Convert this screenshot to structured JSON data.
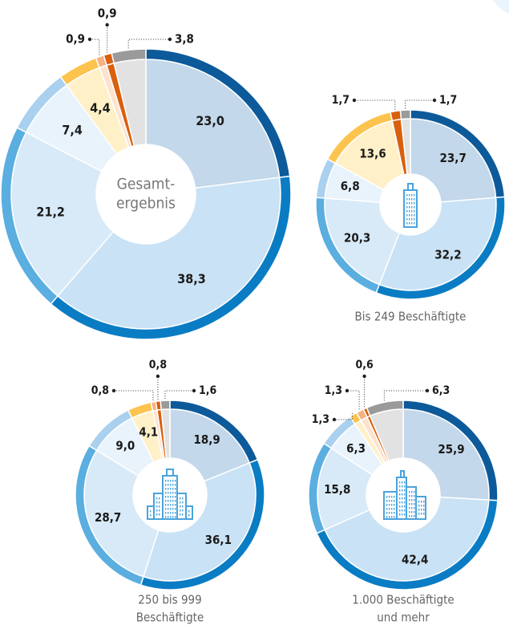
{
  "chart_data": [
    {
      "type": "pie",
      "title": [
        "Gesamt-",
        "ergebnis"
      ],
      "values": [
        23.0,
        38.3,
        21.2,
        7.4,
        4.4,
        0.9,
        0.9,
        3.8
      ],
      "value_labels": [
        "23,0",
        "38,3",
        "21,2",
        "7,4",
        "4,4",
        "0,9",
        "0,9",
        "3,8"
      ],
      "colors": [
        "#0d5a9a",
        "#0a7cc4",
        "#5aaee0",
        "#a9d0ee",
        "#fcc44e",
        "#f5b183",
        "#d9600e",
        "#9a9a9a"
      ],
      "inner_colors": [
        "#c3d8ea",
        "#c9e2f5",
        "#d8eaf8",
        "#e8f3fc",
        "#fff0c8",
        "#fde3cf",
        "#d9600e",
        "#e2e2e2"
      ]
    },
    {
      "type": "pie",
      "title": [
        "Bis 249 Beschäftigte"
      ],
      "values": [
        23.7,
        32.2,
        20.3,
        6.8,
        13.6,
        1.7,
        1.7
      ],
      "value_labels": [
        "23,7",
        "32,2",
        "20,3",
        "6,8",
        "13,6",
        "1,7",
        "1,7"
      ],
      "colors": [
        "#0d5a9a",
        "#0a7cc4",
        "#5aaee0",
        "#a9d0ee",
        "#fcc44e",
        "#d9600e",
        "#9a9a9a"
      ],
      "inner_colors": [
        "#c3d8ea",
        "#c9e2f5",
        "#d8eaf8",
        "#e8f3fc",
        "#fff0c8",
        "#d9600e",
        "#e2e2e2"
      ]
    },
    {
      "type": "pie",
      "title": [
        "250 bis 999",
        "Beschäftigte"
      ],
      "values": [
        18.9,
        36.1,
        28.7,
        9.0,
        4.1,
        0.8,
        0.8,
        1.6
      ],
      "value_labels": [
        "18,9",
        "36,1",
        "28,7",
        "9,0",
        "4,1",
        "0,8",
        "0,8",
        "1,6"
      ],
      "colors": [
        "#0d5a9a",
        "#0a7cc4",
        "#5aaee0",
        "#a9d0ee",
        "#fcc44e",
        "#f5b183",
        "#d9600e",
        "#9a9a9a"
      ],
      "inner_colors": [
        "#c3d8ea",
        "#c9e2f5",
        "#d8eaf8",
        "#e8f3fc",
        "#fff0c8",
        "#fde3cf",
        "#d9600e",
        "#e2e2e2"
      ]
    },
    {
      "type": "pie",
      "title": [
        "1.000 Beschäftigte",
        "und mehr"
      ],
      "values": [
        25.9,
        42.4,
        15.8,
        6.3,
        1.3,
        1.3,
        0.6,
        6.3
      ],
      "value_labels": [
        "25,9",
        "42,4",
        "15,8",
        "6,3",
        "1,3",
        "1,3",
        "0,6",
        "6,3"
      ],
      "colors": [
        "#0d5a9a",
        "#0a7cc4",
        "#5aaee0",
        "#a9d0ee",
        "#fcc44e",
        "#f5b183",
        "#d9600e",
        "#9a9a9a"
      ],
      "inner_colors": [
        "#c3d8ea",
        "#c9e2f5",
        "#d8eaf8",
        "#e8f3fc",
        "#fff0c8",
        "#fde3cf",
        "#d9600e",
        "#e2e2e2"
      ]
    }
  ]
}
